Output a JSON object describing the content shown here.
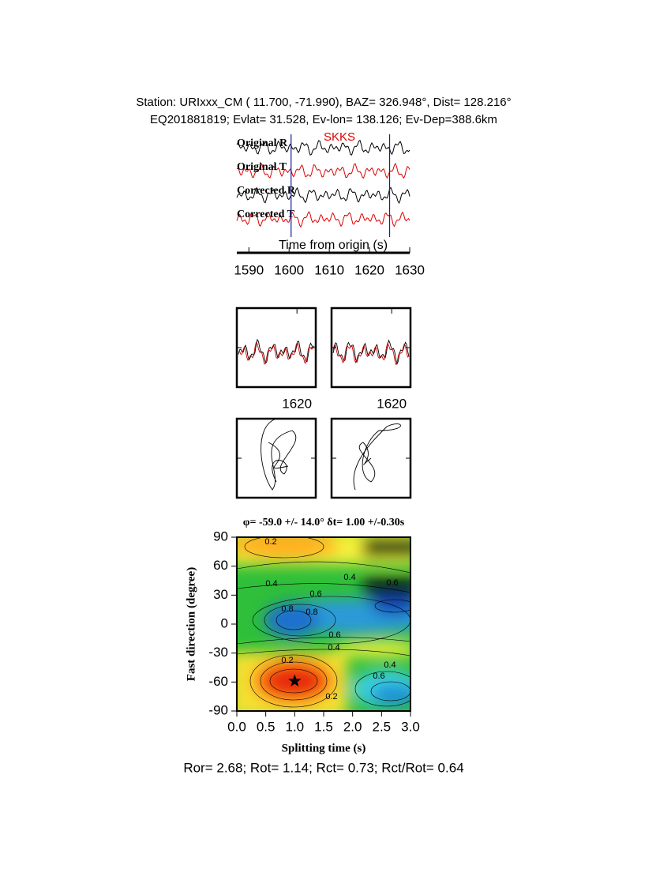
{
  "header": {
    "line1": "Station: URIxxx_CM (  11.700,  -71.990), BAZ=  326.948°, Dist=  128.216°",
    "line2": "EQ201881819; Evlat=  31.528, Ev-lon= 138.126; Ev-Dep=388.6km"
  },
  "chart_data": [
    {
      "type": "waveform",
      "phase": "SKKS",
      "traces": [
        "Original R",
        "Original T",
        "Corrected R",
        "Corrected T"
      ],
      "x_label": "Time from origin (s)",
      "xlim": [
        1587,
        1630
      ],
      "xticks": [
        1590,
        1600,
        1610,
        1620,
        1630
      ],
      "window": [
        1600.5,
        1625
      ]
    },
    {
      "type": "window",
      "xlim": [
        1604,
        1625
      ],
      "xticks": [
        1620
      ]
    },
    {
      "type": "contour",
      "title": "φ= -59.0 +/- 14.0° δt= 1.00 +/-0.30s",
      "x_label": "Splitting time (s)",
      "y_label": "Fast direction (degree)",
      "xlim": [
        0,
        3
      ],
      "ylim": [
        -90,
        90
      ],
      "xticks": [
        {
          "value": 0,
          "label": "0.0"
        },
        {
          "value": 0.5,
          "label": "0.5"
        },
        {
          "value": 1,
          "label": "1.0"
        },
        {
          "value": 1.5,
          "label": "1.5"
        },
        {
          "value": 2,
          "label": "2.0"
        },
        {
          "value": 2.5,
          "label": "2.5"
        },
        {
          "value": 3,
          "label": "3.0"
        }
      ],
      "yticks": [
        -90,
        -60,
        -30,
        0,
        30,
        60,
        90
      ],
      "best": {
        "dt": 1.0,
        "phi": -59
      },
      "contour_labels": [
        {
          "value": 0.2,
          "label": "0.2"
        },
        {
          "value": 0.4,
          "label": "0.4"
        },
        {
          "value": 0.6,
          "label": "0.6"
        },
        {
          "value": 0.8,
          "label": "0.8"
        }
      ]
    }
  ],
  "footer": "Ror= 2.68; Rot= 1.14; Rct= 0.73; Rct/Rot= 0.64"
}
